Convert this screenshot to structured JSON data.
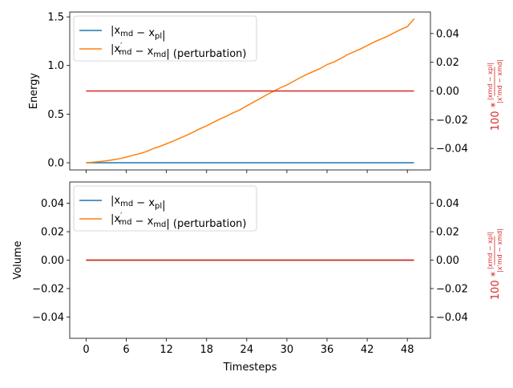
{
  "chart_data": [
    {
      "type": "line",
      "xlabel": "",
      "ylabel": "Energy",
      "y2label": "100 * |x_md - x_pl| / |x'_md - x_md|",
      "xlim": [
        -2.45,
        51.45
      ],
      "ylim": [
        -0.074,
        1.55
      ],
      "y2lim": [
        -0.055,
        0.055
      ],
      "x_ticks": [
        0,
        6,
        12,
        18,
        24,
        30,
        36,
        42,
        48
      ],
      "y_ticks": [
        "0.0",
        "0.5",
        "1.0",
        "1.5"
      ],
      "y2_ticks": [
        "−0.04",
        "−0.02",
        "0.00",
        "0.02",
        "0.04"
      ],
      "legend_position": "upper-left",
      "colors": {
        "blue": "#1f77b4",
        "orange": "#ff7f0e",
        "red": "#d62728"
      },
      "series": [
        {
          "name": "|x_md − x_pl|",
          "color": "#1f77b4",
          "axis": "left",
          "x": [
            0,
            49
          ],
          "values": [
            0.0,
            0.0
          ]
        },
        {
          "name": "|x'_md − x_md| (perturbation)",
          "color": "#ff7f0e",
          "axis": "left",
          "x": [
            0,
            1,
            2,
            3,
            4,
            5,
            6,
            7,
            8,
            9,
            10,
            11,
            12,
            13,
            14,
            15,
            16,
            17,
            18,
            19,
            20,
            21,
            22,
            23,
            24,
            25,
            26,
            27,
            28,
            29,
            30,
            31,
            32,
            33,
            34,
            35,
            36,
            37,
            38,
            39,
            40,
            41,
            42,
            43,
            44,
            45,
            46,
            47,
            48,
            49
          ],
          "values": [
            0.0,
            0.005,
            0.012,
            0.02,
            0.03,
            0.042,
            0.058,
            0.077,
            0.094,
            0.115,
            0.145,
            0.168,
            0.195,
            0.222,
            0.252,
            0.282,
            0.315,
            0.35,
            0.38,
            0.415,
            0.45,
            0.48,
            0.515,
            0.545,
            0.585,
            0.623,
            0.66,
            0.7,
            0.735,
            0.77,
            0.8,
            0.838,
            0.875,
            0.91,
            0.94,
            0.97,
            1.01,
            1.035,
            1.07,
            1.11,
            1.14,
            1.17,
            1.205,
            1.24,
            1.27,
            1.3,
            1.335,
            1.37,
            1.4,
            1.48
          ]
        },
        {
          "name": "",
          "color": "#d62728",
          "axis": "right",
          "x": [
            0,
            49
          ],
          "values": [
            0.0,
            0.0
          ]
        }
      ]
    },
    {
      "type": "line",
      "xlabel": "Timesteps",
      "ylabel": "Volume",
      "y2label": "100 * |x_md - x_pl| / |x'_md - x_md|",
      "xlim": [
        -2.45,
        51.45
      ],
      "ylim": [
        -0.055,
        0.055
      ],
      "y2lim": [
        -0.055,
        0.055
      ],
      "x_ticks": [
        0,
        6,
        12,
        18,
        24,
        30,
        36,
        42,
        48
      ],
      "y_ticks": [
        "−0.04",
        "−0.02",
        "0.00",
        "0.02",
        "0.04"
      ],
      "y2_ticks": [
        "−0.04",
        "−0.02",
        "0.00",
        "0.02",
        "0.04"
      ],
      "legend_position": "upper-left",
      "series": [
        {
          "name": "|x_md − x_pl|",
          "color": "#1f77b4",
          "axis": "left",
          "x": [
            0,
            49
          ],
          "values": [
            0.0,
            0.0
          ]
        },
        {
          "name": "|x'_md − x_md| (perturbation)",
          "color": "#ff7f0e",
          "axis": "left",
          "x": [
            0,
            49
          ],
          "values": [
            0.0,
            0.0
          ]
        },
        {
          "name": "",
          "color": "#d62728",
          "axis": "right",
          "x": [
            0,
            49
          ],
          "values": [
            0.0,
            0.0
          ]
        }
      ]
    }
  ],
  "legend_texts": {
    "entry1": "|x_md − x_pl|",
    "entry2": "|x'_md − x_md| (perturbation)"
  }
}
